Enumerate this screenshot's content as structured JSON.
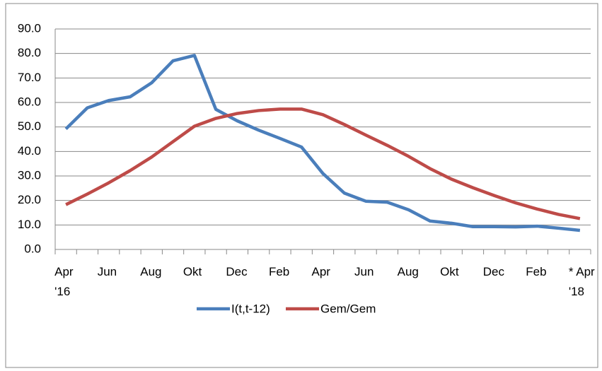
{
  "chart_data": {
    "type": "line",
    "categories": [
      "Apr\n'16",
      null,
      "Jun",
      null,
      "Aug",
      null,
      "Okt",
      null,
      "Dec",
      null,
      "Feb",
      null,
      "Apr",
      null,
      "Jun",
      null,
      "Aug",
      null,
      "Okt",
      null,
      "Dec",
      null,
      "Feb",
      null,
      "* Apr\n'18"
    ],
    "series": [
      {
        "name": "I(t,t-12)",
        "color": "#4a7ebb",
        "values": [
          49.2,
          57.8,
          60.8,
          62.3,
          68,
          77,
          79.2,
          57.2,
          52.5,
          48.7,
          45.3,
          41.8,
          31,
          23,
          19.7,
          19.3,
          16.2,
          11.6,
          10.7,
          9.3,
          9.3,
          9.2,
          9.5,
          8.7,
          7.8
        ]
      },
      {
        "name": "Gem/Gem",
        "color": "#be4b48",
        "values": [
          18.3,
          22.6,
          27.2,
          32.2,
          37.7,
          44,
          50.3,
          53.5,
          55.5,
          56.7,
          57.3,
          57.3,
          55,
          51,
          46.7,
          42.5,
          38,
          33,
          28.7,
          25.2,
          22,
          19,
          16.5,
          14.3,
          12.6
        ]
      }
    ],
    "ylim": [
      0,
      90
    ],
    "yticks": [
      {
        "value": 0,
        "label": "0.0"
      },
      {
        "value": 10,
        "label": "10.0"
      },
      {
        "value": 20,
        "label": "20.0"
      },
      {
        "value": 30,
        "label": "30.0"
      },
      {
        "value": 40,
        "label": "40.0"
      },
      {
        "value": 50,
        "label": "50.0"
      },
      {
        "value": 60,
        "label": "60.0"
      },
      {
        "value": 70,
        "label": "70.0"
      },
      {
        "value": 80,
        "label": "80.0"
      },
      {
        "value": 90,
        "label": "90.0"
      }
    ],
    "grid": true,
    "legend": "bottom"
  }
}
